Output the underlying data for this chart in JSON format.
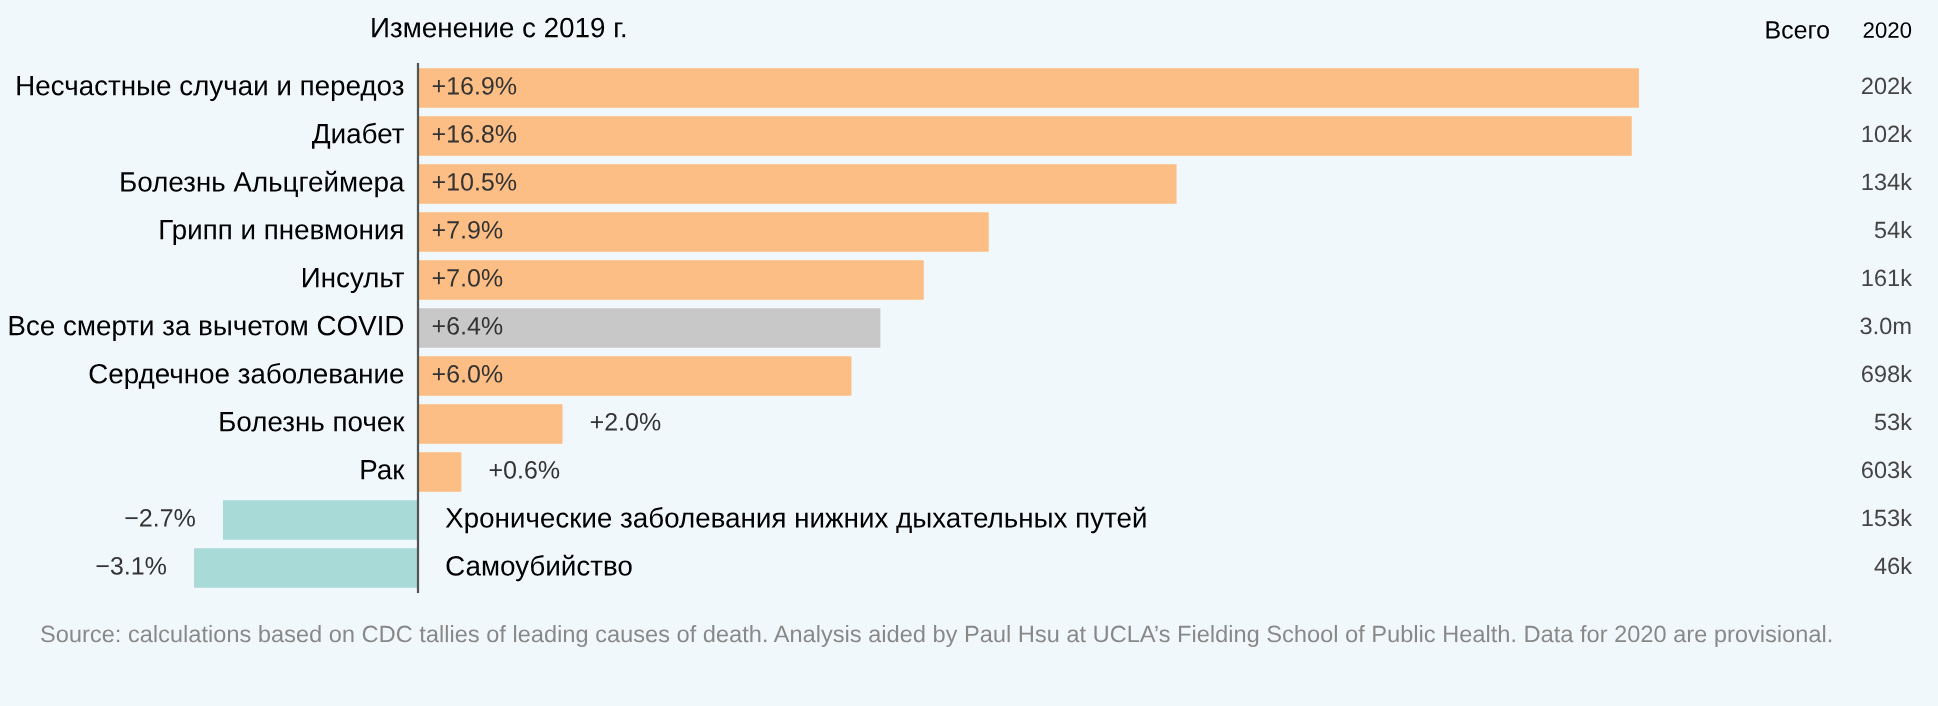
{
  "chart_data": {
    "type": "bar",
    "orientation": "horizontal",
    "title": "Изменение с 2019 г.",
    "categories": [
      "Несчастные случаи и передоз",
      "Диабет",
      "Болезнь Альцгеймера",
      "Грипп и пневмония",
      "Инсульт",
      "Все смерти за вычетом COVID",
      "Сердечное заболевание",
      "Болезнь почек",
      "Рак",
      "Хронические заболевания нижних дыхательных путей",
      "Самоубийство"
    ],
    "values": [
      16.9,
      16.8,
      10.5,
      7.9,
      7.0,
      6.4,
      6.0,
      2.0,
      0.6,
      -2.7,
      -3.1
    ],
    "colors": [
      "#fdbe86",
      "#fdbe86",
      "#fdbe86",
      "#fdbe86",
      "#fdbe86",
      "#c8c8c8",
      "#fdbe86",
      "#fdbe86",
      "#fdbe86",
      "#a8dbd8",
      "#a8dbd8"
    ],
    "value_labels": [
      "+16.9%",
      "+16.8%",
      "+10.5%",
      "+7.9%",
      "+7.0%",
      "+6.4%",
      "+6.0%",
      "+2.0%",
      "+0.6%",
      "−2.7%",
      "−3.1%"
    ],
    "annotations": [
      "Всего",
      "2020",
      "202k",
      "102k",
      "134k",
      "54k",
      "161k",
      "3.0m",
      "698k",
      "53k",
      "603k",
      "153k",
      "46k",
      "Source: calculations based on CDC tallies of leading causes of death. Analysis aided by Paul Hsu at UCLA’s Fielding School of Public Health. Data for 2020 are provisional."
    ]
  }
}
